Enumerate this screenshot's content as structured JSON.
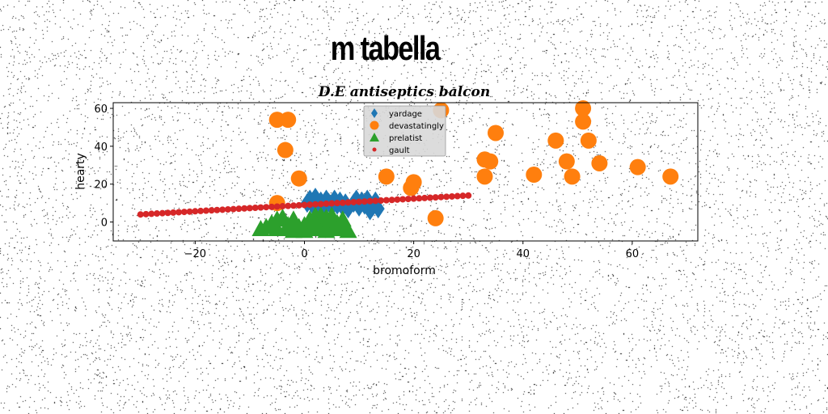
{
  "figure": {
    "suptitle": "m tabella"
  },
  "colors": {
    "yardage": "#1f77b4",
    "devastatingly": "#ff7f0e",
    "prelatist": "#2ca02c",
    "gault": "#d62728"
  },
  "chart_data": {
    "type": "scatter",
    "title": "D.E antiseptics balcon",
    "xlabel": "bromoform",
    "ylabel": "hearty",
    "xlim": [
      -35,
      72
    ],
    "ylim": [
      -10,
      63
    ],
    "xticks": [
      -20,
      0,
      20,
      40,
      60
    ],
    "yticks": [
      0,
      20,
      40,
      60
    ],
    "xtick_labels": [
      "−20",
      "0",
      "20",
      "40",
      "60"
    ],
    "ytick_labels": [
      "0",
      "20",
      "40",
      "60"
    ],
    "grid": false,
    "legend": {
      "position": "top-center",
      "entries": [
        "yardage",
        "devastatingly",
        "prelatist",
        "gault"
      ]
    },
    "series": [
      {
        "name": "yardage",
        "marker": "diamond",
        "points": [
          [
            0.5,
            10
          ],
          [
            1,
            12
          ],
          [
            1.5,
            9
          ],
          [
            2,
            13
          ],
          [
            2.5,
            8
          ],
          [
            3,
            11
          ],
          [
            3.5,
            7
          ],
          [
            4,
            12
          ],
          [
            4.5,
            10
          ],
          [
            5,
            8
          ],
          [
            5.5,
            12
          ],
          [
            6,
            9
          ],
          [
            6.5,
            11
          ],
          [
            7,
            8
          ],
          [
            7.5,
            10
          ],
          [
            8,
            7
          ],
          [
            9,
            10
          ],
          [
            9.5,
            12
          ],
          [
            10,
            8
          ],
          [
            10.5,
            11
          ],
          [
            11,
            9
          ],
          [
            11.5,
            12
          ],
          [
            12,
            6
          ],
          [
            12.5,
            8
          ],
          [
            13,
            11
          ],
          [
            13.5,
            7
          ]
        ]
      },
      {
        "name": "devastatingly",
        "marker": "circle",
        "points": [
          [
            -5,
            54
          ],
          [
            -3,
            54
          ],
          [
            -3.5,
            38
          ],
          [
            -1,
            23
          ],
          [
            -5,
            10
          ],
          [
            15,
            24
          ],
          [
            19.5,
            18
          ],
          [
            20,
            21
          ],
          [
            24,
            2
          ],
          [
            25,
            59
          ],
          [
            33,
            33
          ],
          [
            33,
            24
          ],
          [
            34,
            32
          ],
          [
            35,
            47
          ],
          [
            42,
            25
          ],
          [
            46,
            43
          ],
          [
            48,
            32
          ],
          [
            49,
            24
          ],
          [
            51,
            60
          ],
          [
            51,
            53
          ],
          [
            52,
            43
          ],
          [
            54,
            31
          ],
          [
            61,
            29
          ],
          [
            67,
            24
          ]
        ]
      },
      {
        "name": "prelatist",
        "marker": "triangle",
        "points": [
          [
            -7,
            -3
          ],
          [
            -6,
            -1
          ],
          [
            -5,
            1
          ],
          [
            -5,
            -4
          ],
          [
            -4,
            2
          ],
          [
            -3,
            -2
          ],
          [
            -3,
            -4
          ],
          [
            -2,
            1
          ],
          [
            -1,
            -3
          ],
          [
            0,
            -5
          ],
          [
            0,
            -2
          ],
          [
            1,
            -4
          ],
          [
            1,
            1
          ],
          [
            2,
            -2
          ],
          [
            2,
            3
          ],
          [
            3,
            -4
          ],
          [
            3,
            0
          ],
          [
            3,
            3
          ],
          [
            4,
            -3
          ],
          [
            4,
            2
          ],
          [
            5,
            -2
          ],
          [
            5,
            0
          ],
          [
            5,
            3
          ],
          [
            6,
            -1
          ],
          [
            6,
            -4
          ],
          [
            7,
            1
          ],
          [
            7,
            -3
          ],
          [
            8,
            -5
          ],
          [
            -8,
            -4
          ],
          [
            -2,
            -5
          ],
          [
            4,
            -5
          ],
          [
            2,
            -1
          ]
        ]
      },
      {
        "name": "gault",
        "marker": "point",
        "line": {
          "x_start": -30,
          "x_end": 30,
          "y_start": 4,
          "y_end": 14,
          "count": 61
        }
      }
    ]
  }
}
